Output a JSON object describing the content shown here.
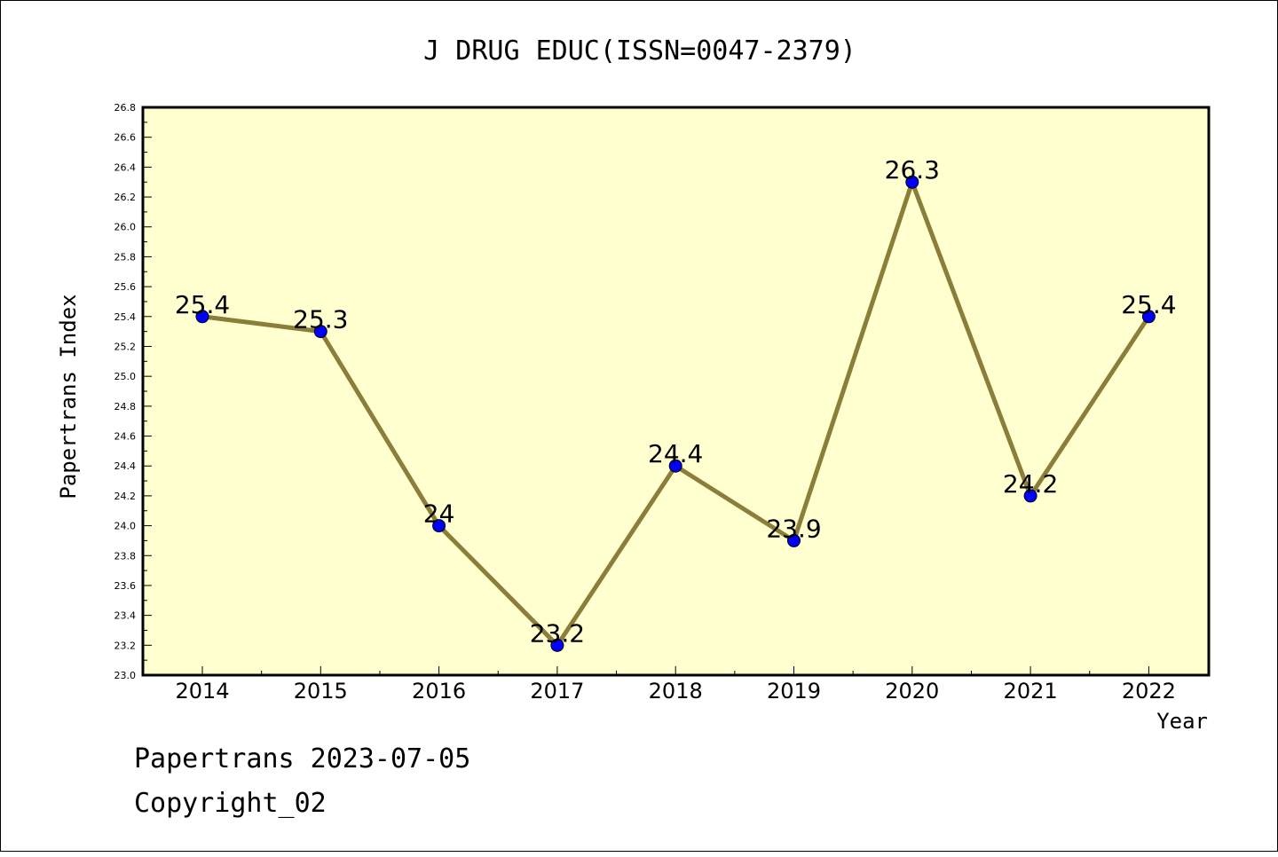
{
  "chart_data": {
    "type": "line",
    "title": "J DRUG EDUC(ISSN=0047-2379)",
    "xlabel": "Year",
    "ylabel": "Papertrans Index",
    "categories": [
      "2014",
      "2015",
      "2016",
      "2017",
      "2018",
      "2019",
      "2020",
      "2021",
      "2022"
    ],
    "series": [
      {
        "values": [
          25.4,
          25.3,
          24.0,
          23.2,
          24.4,
          23.9,
          26.3,
          24.2,
          25.4
        ]
      }
    ],
    "data_labels": [
      "25.4",
      "25.3",
      "24",
      "23.2",
      "24.4",
      "23.9",
      "26.3",
      "24.2",
      "25.4"
    ],
    "ylim": [
      23.0,
      26.8
    ],
    "yticks": [
      "23.0",
      "23.2",
      "23.4",
      "23.6",
      "23.8",
      "24.0",
      "24.2",
      "24.4",
      "24.6",
      "24.8",
      "25.0",
      "25.2",
      "25.4",
      "25.6",
      "25.8",
      "26.0",
      "26.2",
      "26.4",
      "26.6",
      "26.8"
    ],
    "grid": false,
    "colors": {
      "plot_background": "#ffffd0",
      "line": "#8b7d3a",
      "marker": "#0000ff"
    }
  },
  "footer": {
    "line1": "Papertrans 2023-07-05",
    "line2": "Copyright_02"
  }
}
